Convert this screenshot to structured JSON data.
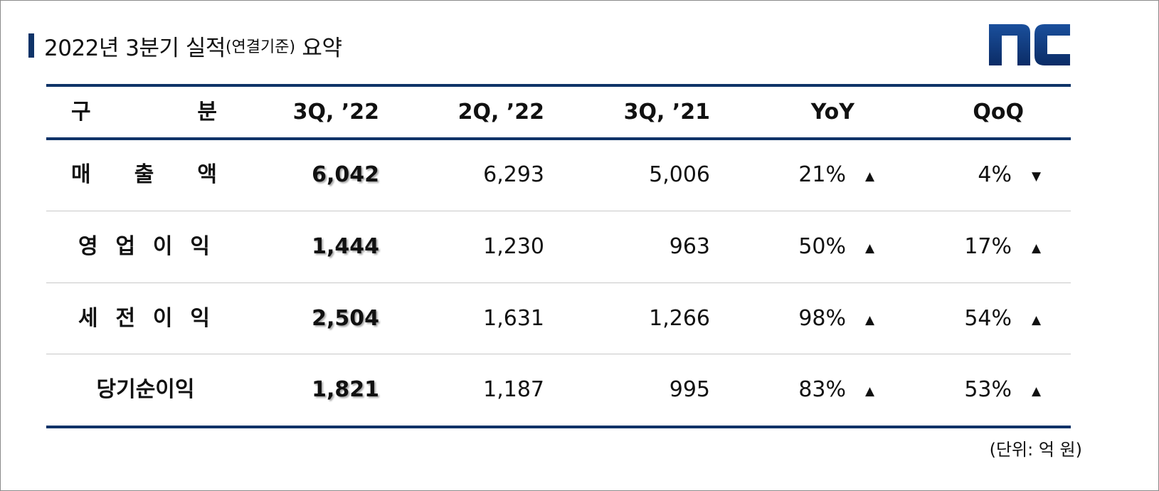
{
  "title": {
    "main": "2022년 3분기 실적",
    "sub": "(연결기준)",
    "suffix": " 요약"
  },
  "logo": {
    "text": "nc",
    "color": "#0e3a80"
  },
  "table": {
    "header": {
      "label": "구        분",
      "label_chars": [
        "구",
        "분"
      ],
      "cols": [
        "3Q, ’22",
        "2Q, ’22",
        "3Q, ’21",
        "YoY",
        "QoQ"
      ]
    },
    "rows": [
      {
        "label": [
          "매",
          "출",
          "액"
        ],
        "q3_22": "6,042",
        "q2_22": "6,293",
        "q3_21": "5,006",
        "yoy": "21%",
        "yoy_dir": "up",
        "qoq": "4%",
        "qoq_dir": "down"
      },
      {
        "label": [
          "영",
          "업",
          "이",
          "익"
        ],
        "q3_22": "1,444",
        "q2_22": "1,230",
        "q3_21": "963",
        "yoy": "50%",
        "yoy_dir": "up",
        "qoq": "17%",
        "qoq_dir": "up"
      },
      {
        "label": [
          "세",
          "전",
          "이",
          "익"
        ],
        "q3_22": "2,504",
        "q2_22": "1,631",
        "q3_21": "1,266",
        "yoy": "98%",
        "yoy_dir": "up",
        "qoq": "54%",
        "qoq_dir": "up"
      },
      {
        "label": [
          "당기순이익"
        ],
        "q3_22": "1,821",
        "q2_22": "1,187",
        "q3_21": "995",
        "yoy": "83%",
        "yoy_dir": "up",
        "qoq": "53%",
        "qoq_dir": "up"
      }
    ]
  },
  "unit": "(단위: 억 원)",
  "colors": {
    "accent": "#0e3368"
  }
}
